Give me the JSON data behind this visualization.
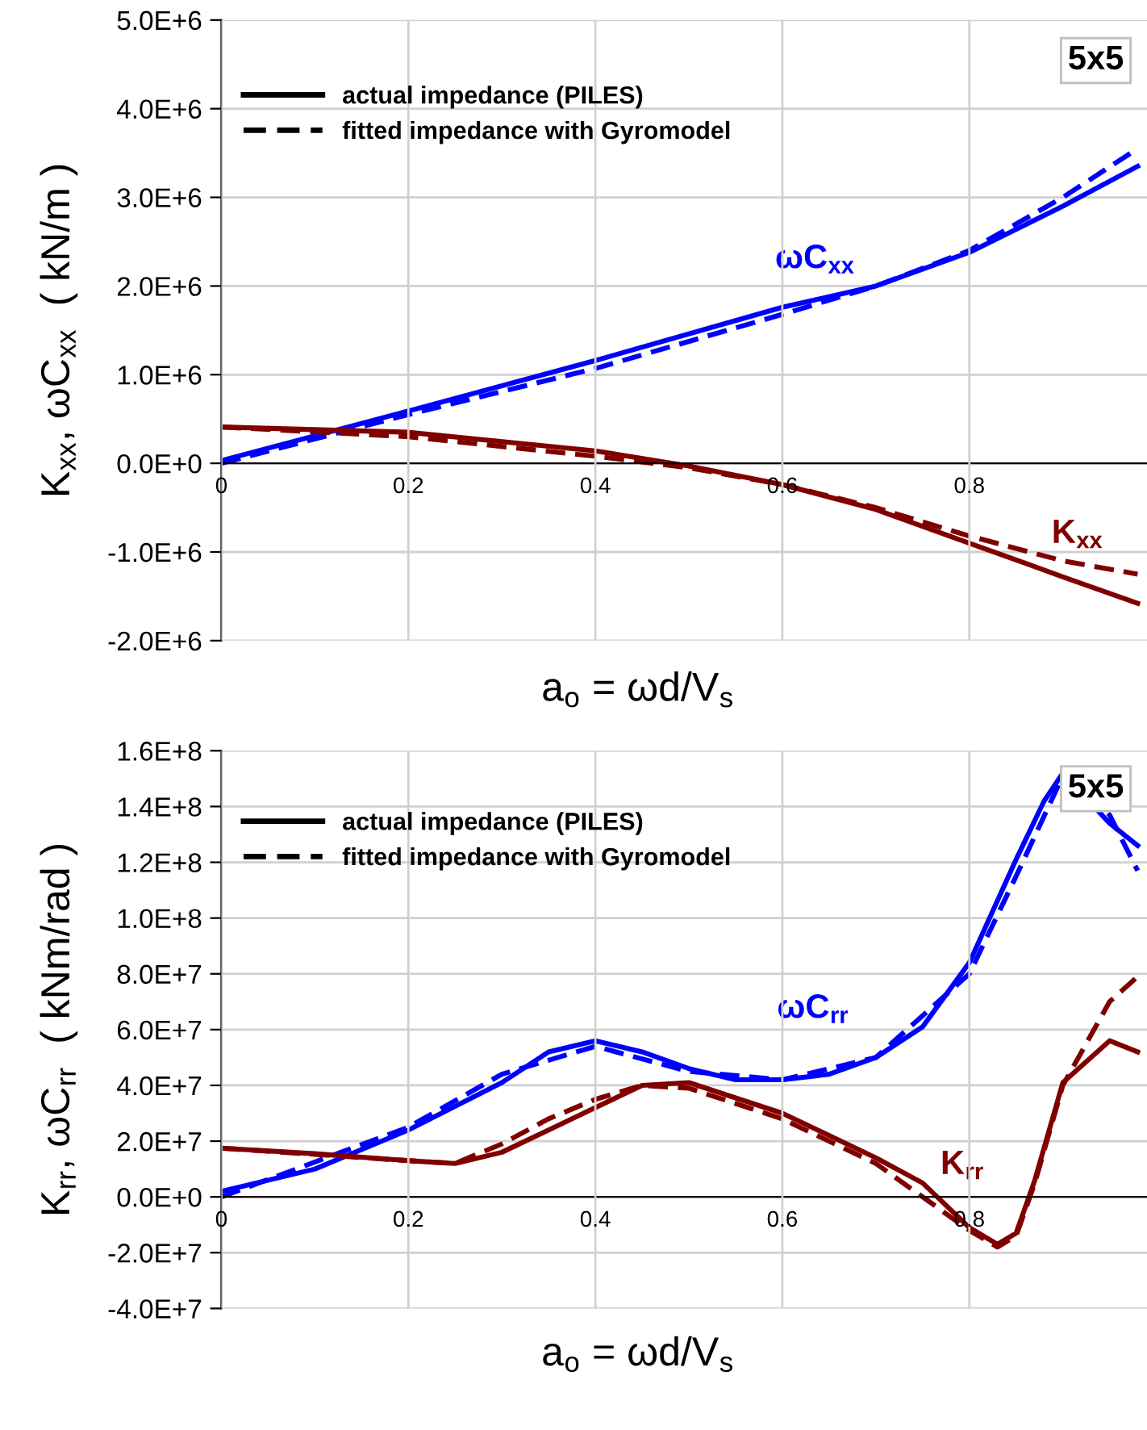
{
  "chart_data": [
    {
      "type": "line",
      "xlabel": "a$_{o}$ = ωd/V$_{s}$",
      "ylabel": "K$_{xx}$, ωC$_{xx}$  ( kN/m )",
      "xlim": [
        0,
        0.99
      ],
      "xticks": [
        0,
        0.2,
        0.4,
        0.6,
        0.8
      ],
      "ylim": [
        -2000000,
        5000000
      ],
      "yticks": [
        {
          "value": -2000000,
          "label": "-2.0E+6"
        },
        {
          "value": -1000000,
          "label": "-1.0E+6"
        },
        {
          "value": 0,
          "label": "0.0E+0"
        },
        {
          "value": 1000000,
          "label": "1.0E+6"
        },
        {
          "value": 2000000,
          "label": "2.0E+6"
        },
        {
          "value": 3000000,
          "label": "3.0E+6"
        },
        {
          "value": 4000000,
          "label": "4.0E+6"
        },
        {
          "value": 5000000,
          "label": "5.0E+6"
        }
      ],
      "grid": true,
      "marker": "none",
      "series": [
        {
          "color": "#0000ff",
          "line_style": "solid",
          "x": [
            0,
            0.2,
            0.4,
            0.6,
            0.7,
            0.8,
            0.9,
            0.98
          ],
          "values": [
            30000,
            590000,
            1160000,
            1760000,
            2000000,
            2380000,
            2900000,
            3350000
          ]
        },
        {
          "color": "#0000ff",
          "line_style": "dashed",
          "x": [
            0,
            0.2,
            0.4,
            0.6,
            0.7,
            0.8,
            0.9,
            0.98
          ],
          "values": [
            0,
            550000,
            1070000,
            1680000,
            2000000,
            2400000,
            3000000,
            3550000
          ]
        },
        {
          "color": "#800000",
          "line_style": "solid",
          "x": [
            0,
            0.2,
            0.4,
            0.5,
            0.6,
            0.7,
            0.8,
            0.9,
            0.98
          ],
          "values": [
            410000,
            350000,
            140000,
            -30000,
            -240000,
            -520000,
            -900000,
            -1280000,
            -1580000
          ]
        },
        {
          "color": "#800000",
          "line_style": "dashed",
          "x": [
            0,
            0.2,
            0.4,
            0.5,
            0.6,
            0.7,
            0.8,
            0.9,
            0.98
          ],
          "values": [
            410000,
            300000,
            80000,
            -50000,
            -240000,
            -500000,
            -820000,
            -1100000,
            -1250000
          ]
        }
      ],
      "annotations": [
        {
          "text": "ωC$_{xx}$",
          "x": 0.7,
          "y": 2000000
        },
        {
          "text": "K$_{xx}$",
          "x": 0.9,
          "y": -1100000
        },
        "5x5",
        "actual impedance (PILES)",
        "fitted impedance with Gyromodel"
      ]
    },
    {
      "type": "line",
      "xlabel": "a$_{o}$ = ωd/V$_{s}$",
      "ylabel": "K$_{rr}$, ωC$_{rr}$  ( kNm/rad )",
      "xlim": [
        0,
        0.99
      ],
      "xticks": [
        0,
        0.2,
        0.4,
        0.6,
        0.8
      ],
      "ylim": [
        -40000000,
        160000000
      ],
      "yticks": [
        {
          "value": -40000000,
          "label": "-4.0E+7"
        },
        {
          "value": -20000000,
          "label": "-2.0E+7"
        },
        {
          "value": 0,
          "label": "0.0E+0"
        },
        {
          "value": 20000000,
          "label": "2.0E+7"
        },
        {
          "value": 40000000,
          "label": "4.0E+7"
        },
        {
          "value": 60000000,
          "label": "6.0E+7"
        },
        {
          "value": 80000000,
          "label": "8.0E+7"
        },
        {
          "value": 100000000,
          "label": "1.0E+8"
        },
        {
          "value": 120000000,
          "label": "1.2E+8"
        },
        {
          "value": 140000000,
          "label": "1.4E+8"
        },
        {
          "value": 160000000,
          "label": "1.6E+8"
        }
      ],
      "grid": true,
      "marker": "none",
      "series": [
        {
          "color": "#0000ff",
          "line_style": "solid",
          "x": [
            0,
            0.1,
            0.2,
            0.3,
            0.35,
            0.4,
            0.45,
            0.5,
            0.55,
            0.6,
            0.65,
            0.7,
            0.75,
            0.8,
            0.85,
            0.88,
            0.9,
            0.95,
            0.98
          ],
          "values": [
            2000000,
            10000000,
            24000000,
            41000000,
            52000000,
            56000000,
            52000000,
            46000000,
            42000000,
            42000000,
            44000000,
            50000000,
            61000000,
            84000000,
            121000000,
            142000000,
            152000000,
            134000000,
            126000000
          ]
        },
        {
          "color": "#0000ff",
          "line_style": "dashed",
          "x": [
            0,
            0.2,
            0.3,
            0.4,
            0.5,
            0.6,
            0.7,
            0.8,
            0.85,
            0.9,
            0.95,
            0.98
          ],
          "values": [
            0,
            25000000,
            44000000,
            54000000,
            45000000,
            42000000,
            50000000,
            80000000,
            115000000,
            151000000,
            137000000,
            117000000
          ]
        },
        {
          "color": "#800000",
          "line_style": "solid",
          "x": [
            0,
            0.1,
            0.2,
            0.25,
            0.3,
            0.35,
            0.4,
            0.45,
            0.5,
            0.6,
            0.7,
            0.75,
            0.8,
            0.83,
            0.85,
            0.87,
            0.9,
            0.95,
            0.98
          ],
          "values": [
            17500000,
            15500000,
            13000000,
            12000000,
            16000000,
            24000000,
            32000000,
            40000000,
            41000000,
            30000000,
            14000000,
            5000000,
            -11000000,
            -17000000,
            -13000000,
            6000000,
            41000000,
            56000000,
            52000000
          ]
        },
        {
          "color": "#800000",
          "line_style": "dashed",
          "x": [
            0,
            0.2,
            0.25,
            0.3,
            0.35,
            0.4,
            0.45,
            0.5,
            0.6,
            0.7,
            0.8,
            0.83,
            0.85,
            0.87,
            0.9,
            0.95,
            0.98
          ],
          "values": [
            17500000,
            13000000,
            12000000,
            19000000,
            28000000,
            35000000,
            40000000,
            39000000,
            28000000,
            12000000,
            -12000000,
            -18000000,
            -14000000,
            5000000,
            40000000,
            70000000,
            79000000
          ]
        }
      ],
      "annotations": [
        {
          "text": "ωC$_{rr}$",
          "x": 0.75,
          "y": 61000000
        },
        {
          "text": "K$_{rr}$",
          "x": 0.75,
          "y": 5000000
        },
        "5x5",
        "actual impedance (PILES)",
        "fitted impedance with Gyromodel"
      ]
    }
  ]
}
